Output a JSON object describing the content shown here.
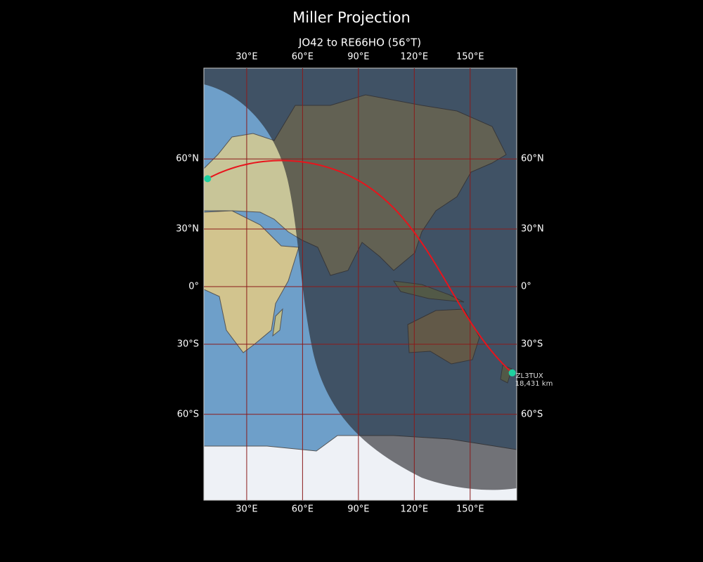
{
  "chart_data": {
    "type": "map",
    "title": "Miller Projection",
    "subtitle": "JO42 to RE66HO (56°T)",
    "projection": "miller",
    "xlim": [
      7,
      175
    ],
    "ylim": [
      -84,
      85
    ],
    "xticks": [
      {
        "value": 30,
        "label": "30°E"
      },
      {
        "value": 60,
        "label": "60°E"
      },
      {
        "value": 90,
        "label": "90°E"
      },
      {
        "value": 120,
        "label": "120°E"
      },
      {
        "value": 150,
        "label": "150°E"
      }
    ],
    "yticks": [
      {
        "value": -60,
        "label": "60°S"
      },
      {
        "value": -30,
        "label": "30°S"
      },
      {
        "value": 0,
        "label": "0°"
      },
      {
        "value": 30,
        "label": "30°N"
      },
      {
        "value": 60,
        "label": "60°N"
      }
    ],
    "grid": true,
    "grid_color": "#8b1a1a",
    "path_color": "#e8141c",
    "point_color": "#1fd1a0",
    "points": [
      {
        "lon": 9,
        "lat": 52.5
      },
      {
        "lon": 172.6,
        "lat": -43.4,
        "label": "ZL3TUX",
        "distance": "18,431 km"
      }
    ]
  }
}
